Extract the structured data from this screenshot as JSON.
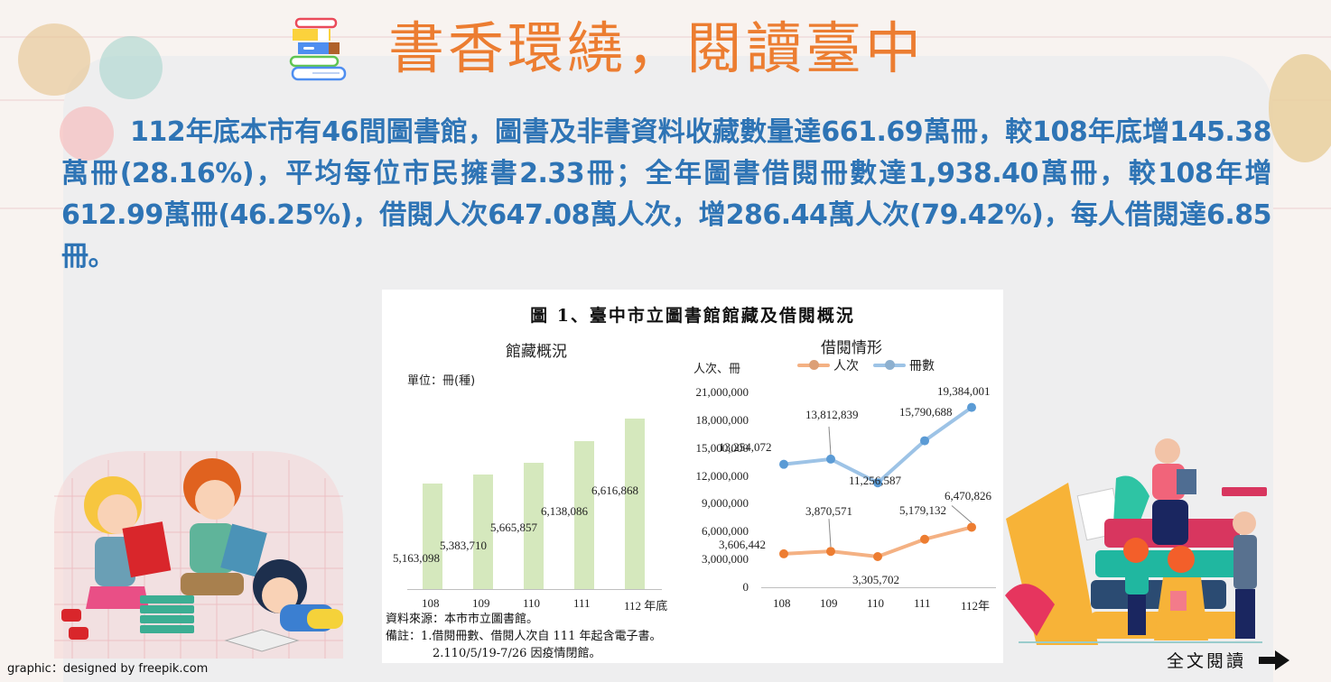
{
  "header": {
    "title": "書香環繞，閱讀臺中",
    "title_color": "#ec7d31",
    "icon": "books-stack-icon"
  },
  "summary": {
    "text": "112年底本市有46間圖書館，圖書及非書資料收藏數量達661.69萬冊，較108年底增145.38萬冊(28.16%)，平均每位市民擁書2.33冊；全年圖書借閱冊數達1,938.40萬冊，較108年增612.99萬冊(46.25%)，借閱人次647.08萬人次，增286.44萬人次(79.42%)，每人借閱達6.85冊。",
    "color": "#2e74b5"
  },
  "figure": {
    "title": "圖 1、臺中市立圖書館館藏及借閱概況",
    "notes": {
      "source": "資料來源：本市市立圖書館。",
      "note1": "備註：1.借閱冊數、借閱人次自 111 年起含電子書。",
      "note2": "2.110/5/19-7/26 因疫情閉館。"
    }
  },
  "chart_data": [
    {
      "type": "bar",
      "title": "館藏概況",
      "unit_label": "單位：冊(種)",
      "categories": [
        "108",
        "109",
        "110",
        "111",
        "112"
      ],
      "x_suffix": "年底",
      "values": [
        5163098,
        5383710,
        5665857,
        6138086,
        6616868
      ],
      "value_labels": [
        "5,163,098",
        "5,383,710",
        "5,665,857",
        "6,138,086",
        "6,616,868"
      ],
      "color": "#d5e8bd",
      "grid": false
    },
    {
      "type": "line",
      "title": "借閱情形",
      "ylabel": "人次、冊",
      "categories": [
        "108",
        "109",
        "110",
        "111",
        "112"
      ],
      "x_suffix": "年",
      "ylim": [
        0,
        21000000
      ],
      "yticks": [
        "21,000,000",
        "18,000,000",
        "15,000,000",
        "12,000,000",
        "9,000,000",
        "6,000,000",
        "3,000,000",
        "0"
      ],
      "legend_position": "top",
      "series": [
        {
          "name": "人次",
          "color": "#f4b183",
          "marker_color": "#ed7d31",
          "values": [
            3606442,
            3870571,
            3305702,
            5179132,
            6470826
          ],
          "value_labels": [
            "3,606,442",
            "3,870,571",
            "3,305,702",
            "5,179,132",
            "6,470,826"
          ]
        },
        {
          "name": "冊數",
          "color": "#9dc3e6",
          "marker_color": "#5b9bd5",
          "values": [
            13254072,
            13812839,
            11256587,
            15790688,
            19384001
          ],
          "value_labels": [
            "13,254,072",
            "13,812,839",
            "11,256,587",
            "15,790,688",
            "19,384,001"
          ]
        }
      ]
    }
  ],
  "footer": {
    "credit": "graphic：designed by freepik.com",
    "read_more": "全文閱讀",
    "read_more_icon": "right-arrow-icon"
  },
  "illustrations": {
    "left": "children-reading-illustration",
    "right": "people-with-books-illustration"
  }
}
